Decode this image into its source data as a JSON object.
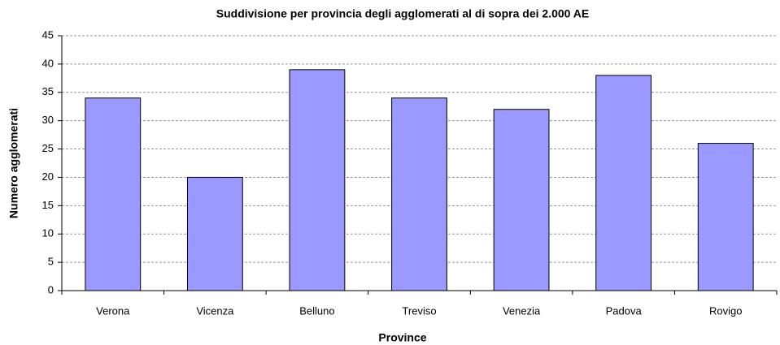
{
  "chart_data": {
    "type": "bar",
    "title": "Suddivisione per provincia degli agglomerati al di sopra dei 2.000 AE",
    "x_label": "Province",
    "y_label": "Numero agglomerati",
    "categories": [
      "Verona",
      "Vicenza",
      "Belluno",
      "Treviso",
      "Venezia",
      "Padova",
      "Rovigo"
    ],
    "values": [
      34,
      20,
      39,
      34,
      32,
      38,
      26
    ],
    "color": "#9999ff",
    "ylim": [
      0,
      45
    ],
    "yticks": [
      0,
      5,
      10,
      15,
      20,
      25,
      30,
      35,
      40,
      45
    ],
    "grid": true
  }
}
